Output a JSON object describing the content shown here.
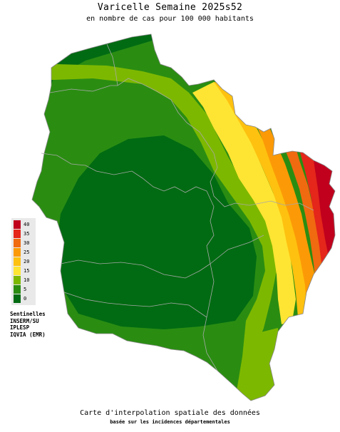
{
  "header": {
    "title": "Varicelle Semaine 2025s52",
    "subtitle": "en nombre de cas pour 100 000 habitants"
  },
  "legend": {
    "labels": [
      "40",
      "35",
      "30",
      "25",
      "20",
      "15",
      "10",
      "5",
      "0"
    ],
    "colors": [
      "#c0001d",
      "#e4261b",
      "#f06a10",
      "#fb9a06",
      "#fec10f",
      "#ffe533",
      "#7db800",
      "#2a8d12",
      "#006b12"
    ]
  },
  "sources": [
    "Sentinelles",
    "INSERM/SU",
    "IPLESP",
    "IQVIA (EMR)"
  ],
  "footer": {
    "line1": "Carte d'interpolation spatiale des données",
    "line2": "basée sur les incidences départementales"
  },
  "map": {
    "region_colors": {
      "dark_green": "#006b12",
      "green": "#2a8d12",
      "light_green": "#7db800",
      "yellow": "#ffe533",
      "amber": "#fec10f",
      "orange": "#fb9a06",
      "dark_orange": "#f06a10",
      "red": "#e4261b",
      "crimson": "#c0001d",
      "border": "#a8a8a8"
    }
  }
}
